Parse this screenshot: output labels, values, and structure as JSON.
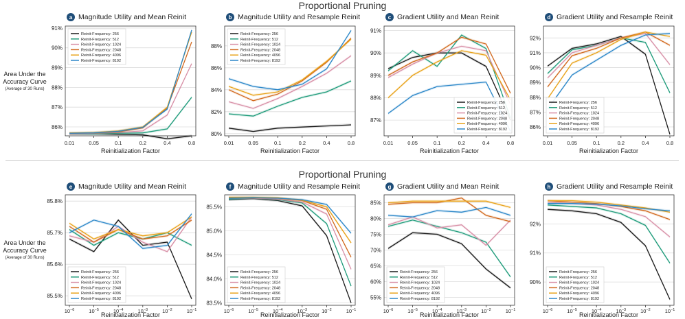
{
  "figure": {
    "top_title": "Proportional Pruning",
    "bottom_title": "Proportional Pruning",
    "y_label_line1": "Area Under the",
    "y_label_line2": "Accuracy Curve",
    "y_label_sub": "(Average of 30 Runs)"
  },
  "legend_entries": [
    "Reinit-Frequency: 256",
    "Reinit-Frequency: 512",
    "Reinit-Frequency: 1024",
    "Reinit-Frequency: 2048",
    "Reinit-Frequency: 4096",
    "Reinit-Frequency: 8192"
  ],
  "series_colors": [
    "#1a1a1a",
    "#1e9b7a",
    "#d88fa6",
    "#d2691e",
    "#e8a218",
    "#2a86c8"
  ],
  "chart_data": [
    {
      "type": "line",
      "badge": "a",
      "title": "Magnitude Utility and Mean Reinit",
      "xlabel": "Reinitialization Factor",
      "categories": [
        "0.01",
        "0.05",
        "0.1",
        "0.2",
        "0.4",
        "0.8"
      ],
      "ylim": [
        85.55,
        91.1
      ],
      "yticks": [
        86,
        87,
        88,
        89,
        90,
        91
      ],
      "ytick_labels": [
        "86%",
        "87%",
        "88%",
        "89%",
        "90%",
        "91%"
      ],
      "legend_position": "top-left",
      "series": [
        {
          "name": "Reinit-Frequency: 256",
          "values": [
            85.65,
            85.65,
            85.63,
            85.6,
            85.4,
            85.55
          ]
        },
        {
          "name": "Reinit-Frequency: 512",
          "values": [
            85.65,
            85.65,
            85.68,
            85.7,
            85.9,
            87.5
          ]
        },
        {
          "name": "Reinit-Frequency: 1024",
          "values": [
            85.65,
            85.68,
            85.72,
            85.8,
            86.6,
            89.2
          ]
        },
        {
          "name": "Reinit-Frequency: 2048",
          "values": [
            85.68,
            85.7,
            85.75,
            85.95,
            86.95,
            90.3
          ]
        },
        {
          "name": "Reinit-Frequency: 4096",
          "values": [
            85.7,
            85.72,
            85.8,
            86.0,
            87.0,
            90.8
          ]
        },
        {
          "name": "Reinit-Frequency: 8192",
          "values": [
            85.68,
            85.7,
            85.78,
            85.98,
            86.9,
            90.9
          ]
        }
      ]
    },
    {
      "type": "line",
      "badge": "b",
      "title": "Magnitude Utility and Resample Reinit",
      "xlabel": "Reinitialization Factor",
      "categories": [
        "0.01",
        "0.05",
        "0.1",
        "0.2",
        "0.4",
        "0.8"
      ],
      "ylim": [
        79.8,
        89.8
      ],
      "yticks": [
        80,
        82,
        84,
        86,
        88
      ],
      "ytick_labels": [
        "80%",
        "82%",
        "84%",
        "86%",
        "88%"
      ],
      "legend_position": "top-left",
      "series": [
        {
          "name": "Reinit-Frequency: 256",
          "values": [
            80.5,
            80.2,
            80.5,
            80.6,
            80.7,
            80.8
          ]
        },
        {
          "name": "Reinit-Frequency: 512",
          "values": [
            81.8,
            81.6,
            82.5,
            83.3,
            83.8,
            84.8
          ]
        },
        {
          "name": "Reinit-Frequency: 1024",
          "values": [
            82.9,
            82.3,
            83.2,
            84.3,
            85.5,
            87.1
          ]
        },
        {
          "name": "Reinit-Frequency: 2048",
          "values": [
            84.0,
            83.0,
            83.6,
            84.8,
            86.5,
            88.7
          ]
        },
        {
          "name": "Reinit-Frequency: 4096",
          "values": [
            84.3,
            83.5,
            83.8,
            84.9,
            86.6,
            88.6
          ]
        },
        {
          "name": "Reinit-Frequency: 8192",
          "values": [
            85.0,
            84.3,
            84.0,
            84.5,
            85.9,
            89.4
          ]
        }
      ]
    },
    {
      "type": "line",
      "badge": "c",
      "title": "Gradient Utility and Mean Reinit",
      "xlabel": "Reinitialization Factor",
      "categories": [
        "0.01",
        "0.05",
        "0.1",
        "0.2",
        "0.4",
        "0.8"
      ],
      "ylim": [
        86.3,
        91.2
      ],
      "yticks": [
        87,
        88,
        89,
        90,
        91
      ],
      "ytick_labels": [
        "87%",
        "88%",
        "89%",
        "90%",
        "91%"
      ],
      "legend_position": "bottom-right",
      "series": [
        {
          "name": "Reinit-Frequency: 256",
          "values": [
            89.3,
            89.8,
            90.0,
            90.0,
            89.4,
            87.0
          ]
        },
        {
          "name": "Reinit-Frequency: 512",
          "values": [
            89.2,
            90.1,
            89.4,
            90.8,
            90.2,
            87.1
          ]
        },
        {
          "name": "Reinit-Frequency: 1024",
          "values": [
            88.9,
            89.5,
            90.0,
            90.3,
            90.1,
            87.7
          ]
        },
        {
          "name": "Reinit-Frequency: 2048",
          "values": [
            89.0,
            89.6,
            90.0,
            90.7,
            90.4,
            88.2
          ]
        },
        {
          "name": "Reinit-Frequency: 4096",
          "values": [
            88.0,
            89.0,
            89.6,
            90.1,
            89.9,
            87.9
          ]
        },
        {
          "name": "Reinit-Frequency: 8192",
          "values": [
            87.3,
            88.1,
            88.5,
            88.6,
            88.7,
            86.5
          ]
        }
      ]
    },
    {
      "type": "line",
      "badge": "d",
      "title": "Gradient Utility and Resample Reinit",
      "xlabel": "Reinitialization Factor",
      "categories": [
        "0.01",
        "0.05",
        "0.1",
        "0.2",
        "0.4",
        "0.8"
      ],
      "ylim": [
        85.4,
        92.8
      ],
      "yticks": [
        86,
        87,
        88,
        89,
        90,
        91,
        92
      ],
      "ytick_labels": [
        "86%",
        "87%",
        "88%",
        "89%",
        "90%",
        "91%",
        "92%"
      ],
      "legend_position": "bottom-left",
      "series": [
        {
          "name": "Reinit-Frequency: 256",
          "values": [
            90.1,
            91.3,
            91.6,
            92.1,
            90.9,
            85.5
          ]
        },
        {
          "name": "Reinit-Frequency: 512",
          "values": [
            89.6,
            91.2,
            91.5,
            92.0,
            91.7,
            88.3
          ]
        },
        {
          "name": "Reinit-Frequency: 1024",
          "values": [
            89.3,
            91.0,
            91.5,
            92.0,
            92.3,
            90.2
          ]
        },
        {
          "name": "Reinit-Frequency: 2048",
          "values": [
            88.7,
            90.8,
            91.3,
            92.0,
            92.4,
            91.5
          ]
        },
        {
          "name": "Reinit-Frequency: 4096",
          "values": [
            87.9,
            90.3,
            91.0,
            91.9,
            92.4,
            92.1
          ]
        },
        {
          "name": "Reinit-Frequency: 8192",
          "values": [
            87.2,
            89.5,
            90.5,
            91.5,
            92.2,
            92.3
          ]
        }
      ]
    },
    {
      "type": "line",
      "badge": "e",
      "title": "Magnitude Utility and Mean Reinit",
      "xlabel": "Reinitialization Factor",
      "categories": [
        "10^-6",
        "10^-5",
        "10^-4",
        "10^-3",
        "10^-2",
        "10^-1"
      ],
      "ylim": [
        85.47,
        85.82
      ],
      "yticks": [
        85.5,
        85.6,
        85.7,
        85.8
      ],
      "ytick_labels": [
        "85.5%",
        "85.6%",
        "85.7%",
        "85.8%"
      ],
      "legend_position": "bottom-left",
      "series": [
        {
          "name": "Reinit-Frequency: 256",
          "values": [
            85.68,
            85.64,
            85.74,
            85.66,
            85.67,
            85.49
          ]
        },
        {
          "name": "Reinit-Frequency: 512",
          "values": [
            85.71,
            85.66,
            85.7,
            85.68,
            85.7,
            85.66
          ]
        },
        {
          "name": "Reinit-Frequency: 1024",
          "values": [
            85.69,
            85.67,
            85.72,
            85.67,
            85.64,
            85.75
          ]
        },
        {
          "name": "Reinit-Frequency: 2048",
          "values": [
            85.72,
            85.67,
            85.71,
            85.68,
            85.69,
            85.74
          ]
        },
        {
          "name": "Reinit-Frequency: 4096",
          "values": [
            85.73,
            85.68,
            85.71,
            85.69,
            85.7,
            85.75
          ]
        },
        {
          "name": "Reinit-Frequency: 8192",
          "values": [
            85.7,
            85.74,
            85.72,
            85.65,
            85.66,
            85.76
          ]
        }
      ]
    },
    {
      "type": "line",
      "badge": "f",
      "title": "Magnitude Utility and Resample Reinit",
      "xlabel": "Reinitialization Factor",
      "categories": [
        "10^-6",
        "10^-5",
        "10^-4",
        "10^-3",
        "10^-2",
        "10^-1"
      ],
      "ylim": [
        83.45,
        85.75
      ],
      "yticks": [
        83.5,
        84.0,
        84.5,
        85.0,
        85.5
      ],
      "ytick_labels": [
        "83.5%",
        "84.0%",
        "84.5%",
        "85.0%",
        "85.5%"
      ],
      "legend_position": "bottom-left",
      "series": [
        {
          "name": "Reinit-Frequency: 256",
          "values": [
            85.65,
            85.67,
            85.63,
            85.52,
            84.9,
            83.5
          ]
        },
        {
          "name": "Reinit-Frequency: 512",
          "values": [
            85.66,
            85.68,
            85.65,
            85.58,
            85.15,
            83.85
          ]
        },
        {
          "name": "Reinit-Frequency: 1024",
          "values": [
            85.68,
            85.68,
            85.66,
            85.6,
            85.35,
            84.2
          ]
        },
        {
          "name": "Reinit-Frequency: 2048",
          "values": [
            85.69,
            85.69,
            85.68,
            85.63,
            85.45,
            84.45
          ]
        },
        {
          "name": "Reinit-Frequency: 4096",
          "values": [
            85.7,
            85.7,
            85.69,
            85.64,
            85.5,
            84.75
          ]
        },
        {
          "name": "Reinit-Frequency: 8192",
          "values": [
            85.68,
            85.69,
            85.68,
            85.65,
            85.55,
            84.95
          ]
        }
      ]
    },
    {
      "type": "line",
      "badge": "g",
      "title": "Gradient Utility and Mean Reinit",
      "xlabel": "Reinitialization Factor",
      "categories": [
        "10^-6",
        "10^-5",
        "10^-4",
        "10^-3",
        "10^-2",
        "10^-1"
      ],
      "ylim": [
        52.5,
        87.5
      ],
      "yticks": [
        55,
        60,
        65,
        70,
        75,
        80,
        85
      ],
      "ytick_labels": [
        "55%",
        "60%",
        "65%",
        "70%",
        "75%",
        "80%",
        "85%"
      ],
      "legend_position": "bottom-left",
      "series": [
        {
          "name": "Reinit-Frequency: 256",
          "values": [
            70.5,
            75.5,
            75.0,
            72.0,
            64.0,
            58.0
          ]
        },
        {
          "name": "Reinit-Frequency: 512",
          "values": [
            77.5,
            79.5,
            77.5,
            75.5,
            72.5,
            61.5
          ]
        },
        {
          "name": "Reinit-Frequency: 1024",
          "values": [
            78.0,
            80.5,
            77.0,
            78.0,
            71.5,
            79.5
          ]
        },
        {
          "name": "Reinit-Frequency: 2048",
          "values": [
            84.5,
            85.0,
            85.0,
            86.5,
            81.0,
            79.0
          ]
        },
        {
          "name": "Reinit-Frequency: 4096",
          "values": [
            85.0,
            85.5,
            85.5,
            85.5,
            85.5,
            83.5
          ]
        },
        {
          "name": "Reinit-Frequency: 8192",
          "values": [
            81.0,
            80.5,
            82.5,
            82.0,
            83.5,
            81.0
          ]
        }
      ]
    },
    {
      "type": "line",
      "badge": "h",
      "title": "Gradient Utility and Resample Reinit",
      "xlabel": "Reinitialization Factor",
      "categories": [
        "10^-6",
        "10^-5",
        "10^-4",
        "10^-3",
        "10^-2",
        "10^-1"
      ],
      "ylim": [
        89.2,
        93.0
      ],
      "yticks": [
        90,
        91,
        92
      ],
      "ytick_labels": [
        "90%",
        "91%",
        "92%"
      ],
      "legend_position": "bottom-left",
      "series": [
        {
          "name": "Reinit-Frequency: 256",
          "values": [
            92.5,
            92.45,
            92.35,
            92.05,
            91.25,
            89.4
          ]
        },
        {
          "name": "Reinit-Frequency: 512",
          "values": [
            92.65,
            92.6,
            92.55,
            92.35,
            91.95,
            90.65
          ]
        },
        {
          "name": "Reinit-Frequency: 1024",
          "values": [
            92.75,
            92.7,
            92.65,
            92.5,
            92.25,
            91.55
          ]
        },
        {
          "name": "Reinit-Frequency: 2048",
          "values": [
            92.8,
            92.75,
            92.7,
            92.6,
            92.45,
            92.15
          ]
        },
        {
          "name": "Reinit-Frequency: 4096",
          "values": [
            92.8,
            92.8,
            92.75,
            92.65,
            92.55,
            92.4
          ]
        },
        {
          "name": "Reinit-Frequency: 8192",
          "values": [
            92.7,
            92.7,
            92.68,
            92.62,
            92.52,
            92.45
          ]
        }
      ]
    }
  ]
}
